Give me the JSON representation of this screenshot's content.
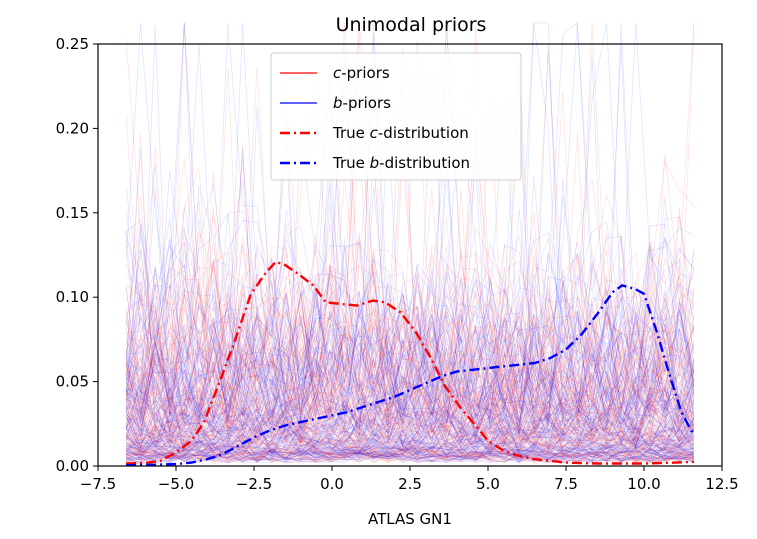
{
  "chart_data": {
    "type": "line",
    "title": "Unimodal priors",
    "xlabel": "ATLAS GN1",
    "ylabel": "",
    "xlim": [
      -7.5,
      12.5
    ],
    "ylim": [
      0,
      0.25
    ],
    "xticks": [
      -7.5,
      -5.0,
      -2.5,
      0.0,
      2.5,
      5.0,
      7.5,
      10.0,
      12.5
    ],
    "xtick_labels": [
      "−7.5",
      "−5.0",
      "−2.5",
      "0.0",
      "2.5",
      "5.0",
      "7.5",
      "10.0",
      "12.5"
    ],
    "yticks": [
      0,
      0.05,
      0.1,
      0.15,
      0.2,
      0.25
    ],
    "ytick_labels": [
      "0.00",
      "0.05",
      "0.10",
      "0.15",
      "0.20",
      "0.25"
    ],
    "grid": false,
    "legend_position": "top-center",
    "legend": [
      {
        "label_pre": "",
        "label_var": "c",
        "label_post": "-priors",
        "style": "solid",
        "color": "#ff0000"
      },
      {
        "label_pre": "",
        "label_var": "b",
        "label_post": "-priors",
        "style": "solid",
        "color": "#0000ff"
      },
      {
        "label_pre": "True ",
        "label_var": "c",
        "label_post": "-distribution",
        "style": "dashdot",
        "color": "#ff0000"
      },
      {
        "label_pre": "True ",
        "label_var": "b",
        "label_post": "-distribution",
        "style": "dashdot",
        "color": "#0000ff"
      }
    ],
    "series": [
      {
        "name": "True c-distribution",
        "color": "#ff0000",
        "style": "dashdot",
        "x": [
          -6.6,
          -6.0,
          -5.5,
          -5.0,
          -4.5,
          -4.1,
          -3.6,
          -3.1,
          -2.6,
          -2.1,
          -1.8,
          -1.5,
          -1.1,
          -0.6,
          -0.2,
          0.3,
          0.8,
          1.3,
          1.7,
          2.2,
          2.7,
          3.2,
          3.6,
          4.1,
          4.6,
          5.0,
          5.5,
          6.0,
          6.5,
          7.0,
          7.5,
          8.0,
          8.5,
          9.0,
          9.5,
          10.0,
          10.5,
          11.0,
          11.6
        ],
        "y": [
          0.0015,
          0.0018,
          0.003,
          0.008,
          0.015,
          0.026,
          0.05,
          0.075,
          0.102,
          0.115,
          0.121,
          0.119,
          0.114,
          0.107,
          0.097,
          0.096,
          0.095,
          0.098,
          0.097,
          0.091,
          0.079,
          0.063,
          0.048,
          0.035,
          0.024,
          0.015,
          0.009,
          0.006,
          0.004,
          0.003,
          0.002,
          0.0017,
          0.0015,
          0.0015,
          0.0015,
          0.0015,
          0.0018,
          0.002,
          0.0025
        ]
      },
      {
        "name": "True b-distribution",
        "color": "#0000ff",
        "style": "dashdot",
        "x": [
          -6.6,
          -6.0,
          -5.5,
          -5.0,
          -4.5,
          -4.0,
          -3.5,
          -3.0,
          -2.5,
          -2.0,
          -1.5,
          -1.0,
          -0.5,
          0.0,
          0.5,
          1.0,
          1.5,
          2.0,
          2.5,
          3.0,
          3.5,
          4.0,
          4.5,
          5.0,
          5.5,
          6.0,
          6.5,
          7.0,
          7.5,
          8.0,
          8.5,
          9.0,
          9.3,
          9.7,
          10.0,
          10.4,
          10.8,
          11.2,
          11.6
        ],
        "y": [
          0.0005,
          0.0006,
          0.0008,
          0.0012,
          0.002,
          0.004,
          0.007,
          0.012,
          0.017,
          0.021,
          0.024,
          0.026,
          0.028,
          0.03,
          0.032,
          0.035,
          0.038,
          0.041,
          0.045,
          0.049,
          0.053,
          0.056,
          0.057,
          0.058,
          0.059,
          0.06,
          0.061,
          0.064,
          0.069,
          0.078,
          0.09,
          0.103,
          0.107,
          0.105,
          0.102,
          0.08,
          0.055,
          0.032,
          0.018
        ]
      }
    ],
    "priors": [
      {
        "name": "c-priors",
        "color": "#ff0000",
        "count": 140
      },
      {
        "name": "b-priors",
        "color": "#0000ff",
        "count": 140
      }
    ]
  }
}
